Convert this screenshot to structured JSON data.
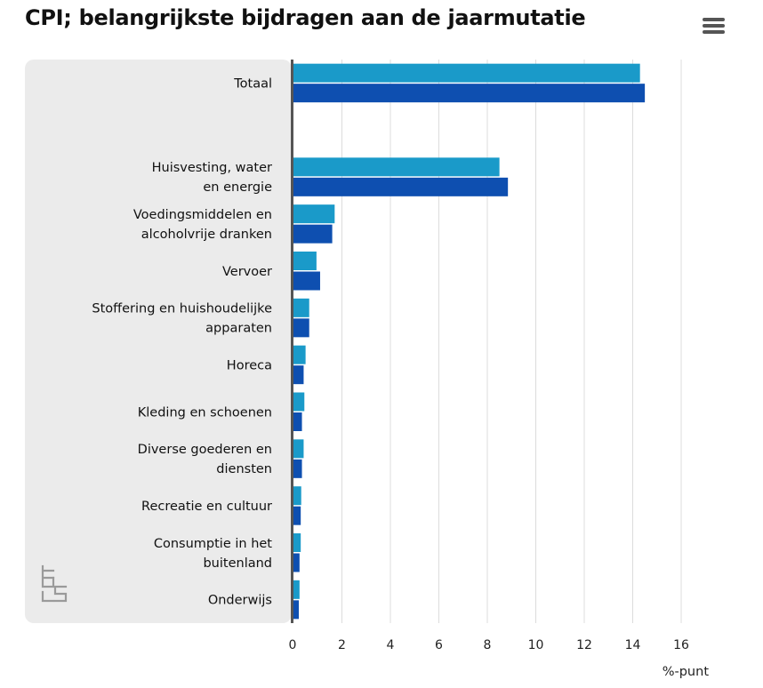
{
  "chart_data": {
    "type": "bar",
    "orientation": "horizontal",
    "title": "CPI; belangrijkste bijdragen aan de jaarmutatie",
    "xlabel": "%-punt",
    "xlim": [
      0,
      16
    ],
    "xticks": [
      "0",
      "2",
      "4",
      "6",
      "8",
      "10",
      "12",
      "14",
      "16"
    ],
    "grid": true,
    "legend": "none",
    "categories": [
      "Totaal",
      "",
      "Huisvesting, water\nen energie",
      "Voedingsmiddelen en\nalcoholvrije dranken",
      "Vervoer",
      "Stoffering en huishoudelijke\napparaten",
      "Horeca",
      "Kleding en schoenen",
      "Diverse goederen en\ndiensten",
      "Recreatie en cultuur",
      "Consumptie in het\nbuitenland",
      "Onderwijs"
    ],
    "series": [
      {
        "color": "#1a9ac9",
        "values": [
          14.3,
          null,
          8.5,
          1.7,
          0.95,
          0.65,
          0.5,
          0.45,
          0.42,
          0.32,
          0.3,
          0.25
        ]
      },
      {
        "color": "#0e4fb0",
        "values": [
          14.5,
          null,
          8.85,
          1.6,
          1.1,
          0.65,
          0.42,
          0.35,
          0.35,
          0.3,
          0.25,
          0.22
        ]
      }
    ]
  },
  "menu_icon": "hamburger-menu-icon",
  "logo_icon": "cbs-logo-icon",
  "colors": {
    "panel": "#ebebeb",
    "axis": "#555555",
    "grid": "#dcdcdc"
  }
}
